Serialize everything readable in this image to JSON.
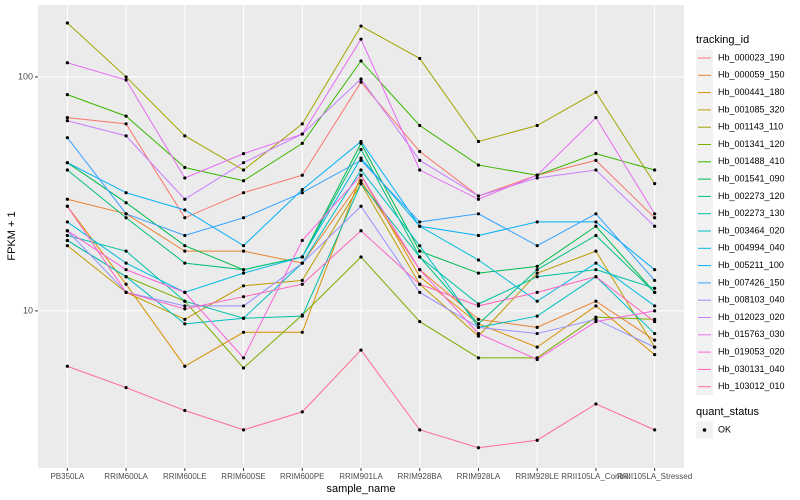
{
  "chart_data": {
    "type": "line",
    "xlabel": "sample_name",
    "ylabel": "FPKM + 1",
    "categories": [
      "PB350LA",
      "RRIM600LA",
      "RRIM600LE",
      "RRIM600SE",
      "RRIM600PE",
      "RRIM901LA",
      "RRIM928BA",
      "RRIM928LA",
      "RRIM928LE",
      "RRII105LA_Control",
      "RRII105LA_Stressed"
    ],
    "log_y": true,
    "grid": true,
    "ylim": [
      2.13,
      203
    ],
    "yticks": [
      10,
      100
    ],
    "legend_title": "tracking_id",
    "point_legend": {
      "title": "quant_status",
      "labels": [
        "OK"
      ],
      "color": "#000000"
    },
    "series": [
      {
        "name": "Hb_000023_190",
        "color": "#F8766D",
        "values": [
          67,
          63,
          25,
          32,
          38,
          95,
          48,
          31,
          38,
          44,
          25
        ]
      },
      {
        "name": "Hb_000059_150",
        "color": "#EA8331",
        "values": [
          30,
          26,
          18,
          18,
          16,
          36,
          15,
          9.2,
          8.5,
          11,
          7.5
        ]
      },
      {
        "name": "Hb_000441_180",
        "color": "#D89000",
        "values": [
          28,
          13,
          5.8,
          8.1,
          8.1,
          38,
          14,
          8.8,
          7.0,
          10.5,
          6.5
        ]
      },
      {
        "name": "Hb_001085_320",
        "color": "#C09B00",
        "values": [
          19,
          12,
          9.2,
          12.8,
          13.5,
          35,
          13,
          7.8,
          14.5,
          18,
          7.0
        ]
      },
      {
        "name": "Hb_001143_110",
        "color": "#A3A500",
        "values": [
          170,
          100,
          56,
          40,
          63,
          165,
          120,
          53,
          62,
          86,
          35
        ]
      },
      {
        "name": "Hb_001341_120",
        "color": "#7CAE00",
        "values": [
          20,
          14,
          11,
          5.7,
          9.6,
          17,
          9.0,
          6.3,
          6.3,
          9.4,
          9.2
        ]
      },
      {
        "name": "Hb_001488_410",
        "color": "#39B600",
        "values": [
          84,
          68,
          41,
          36,
          52,
          117,
          62,
          42,
          38,
          47,
          40
        ]
      },
      {
        "name": "Hb_001541_090",
        "color": "#00BB4E",
        "values": [
          43,
          29,
          19,
          15,
          17,
          52,
          18,
          14.5,
          15.5,
          23,
          12
        ]
      },
      {
        "name": "Hb_002273_120",
        "color": "#00BF7D",
        "values": [
          40,
          25,
          16,
          15,
          17,
          49,
          17,
          8.8,
          15,
          21,
          12
        ]
      },
      {
        "name": "Hb_002273_130",
        "color": "#00C1A3",
        "values": [
          21,
          18,
          11,
          9.3,
          9.5,
          35,
          17,
          10.7,
          14,
          15,
          12.5
        ]
      },
      {
        "name": "Hb_003464_020",
        "color": "#00BFC4",
        "values": [
          20,
          14,
          8.8,
          9.3,
          16,
          40,
          19,
          8.5,
          9.5,
          14,
          8.0
        ]
      },
      {
        "name": "Hb_004994_040",
        "color": "#00BAE0",
        "values": [
          24,
          16,
          12,
          14.5,
          17,
          45,
          23,
          16.5,
          11,
          16,
          10.5
        ]
      },
      {
        "name": "Hb_005211_100",
        "color": "#00B0F6",
        "values": [
          43,
          32,
          27,
          19,
          33,
          53,
          23,
          21,
          24,
          24,
          15
        ]
      },
      {
        "name": "Hb_007426_150",
        "color": "#35A2FF",
        "values": [
          55,
          26,
          21,
          25,
          32,
          44,
          24,
          26,
          19,
          26,
          13.5
        ]
      },
      {
        "name": "Hb_008103_040",
        "color": "#9590FF",
        "values": [
          22,
          12,
          10.5,
          10.5,
          16,
          28,
          12,
          8.5,
          8.0,
          9.2,
          7.0
        ]
      },
      {
        "name": "Hb_012023_020",
        "color": "#C77CFF",
        "values": [
          65,
          56,
          30,
          43,
          57,
          98,
          44,
          31,
          37,
          40,
          23
        ]
      },
      {
        "name": "Hb_015763_030",
        "color": "#E76BF3",
        "values": [
          115,
          97,
          37,
          47,
          57,
          145,
          40,
          30,
          38,
          67,
          26
        ]
      },
      {
        "name": "Hb_019053_020",
        "color": "#FA62DB",
        "values": [
          22,
          15,
          12,
          6.3,
          20,
          38,
          15,
          8.0,
          6.2,
          9.0,
          10
        ]
      },
      {
        "name": "Hb_030131_040",
        "color": "#FF62BC",
        "values": [
          28,
          12,
          10.2,
          11.5,
          13,
          22,
          13,
          10.5,
          12,
          14,
          9.0
        ]
      },
      {
        "name": "Hb_103012_010",
        "color": "#FF6C91",
        "values": [
          5.8,
          4.7,
          3.75,
          3.1,
          3.7,
          6.8,
          3.1,
          2.6,
          2.8,
          4.0,
          3.1
        ]
      }
    ]
  }
}
